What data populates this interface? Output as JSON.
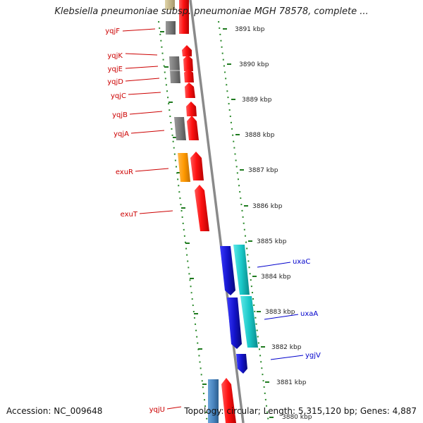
{
  "title": "Klebsiella pneumoniae subsp. pneumoniae MGH 78578, complete ...",
  "footer": {
    "accession": "Accession: NC_009648",
    "summary": "Topology: circular; Length: 5,315,120 bp; Genes: 4,887"
  },
  "colors": {
    "left_gene_label": "#cc0000",
    "right_gene_label": "#0000cc",
    "tick_mark": "#1f7a1f",
    "backbone": "#8a8a8a",
    "red_gene": "#ff1a1a",
    "gray_gene": "#808080",
    "orange_gene": "#ff9900",
    "blue_gene": "#1a1acc",
    "cyan_gene": "#19c8c8",
    "steelblue_gene": "#4a86c0",
    "olive_gene": "#c8b88a"
  },
  "scale": {
    "unit": "kbp",
    "ticks": [
      {
        "label": "3891 kbp"
      },
      {
        "label": "3890 kbp"
      },
      {
        "label": "3889 kbp"
      },
      {
        "label": "3888 kbp"
      },
      {
        "label": "3887 kbp"
      },
      {
        "label": "3886 kbp"
      },
      {
        "label": "3885 kbp"
      },
      {
        "label": "3884 kbp"
      },
      {
        "label": "3883 kbp"
      },
      {
        "label": "3882 kbp"
      },
      {
        "label": "3881 kbp"
      },
      {
        "label": "3880 kbp"
      }
    ]
  },
  "left_labels": [
    "yqjF",
    "yqjK",
    "yqjE",
    "yqjD",
    "yqjC",
    "yqjB",
    "yqjA",
    "exuR",
    "exuT",
    "yqjU"
  ],
  "right_labels": [
    "uxaC",
    "uxaA",
    "ygjV"
  ]
}
